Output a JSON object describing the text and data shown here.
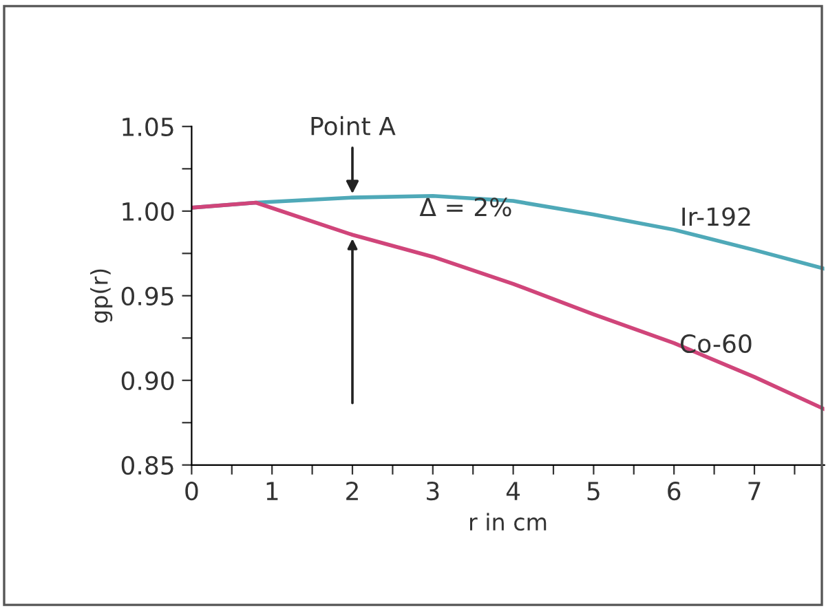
{
  "chart_data": {
    "type": "line",
    "xlabel": "r in cm",
    "ylabel": "gp(r)",
    "xlim": [
      0,
      7.87
    ],
    "ylim": [
      0.85,
      1.05
    ],
    "xticks": [
      0,
      {
        "value": 0.5,
        "label": null
      },
      1,
      {
        "value": 1.5,
        "label": null
      },
      2,
      {
        "value": 2.5,
        "label": null
      },
      3,
      {
        "value": 3.5,
        "label": null
      },
      4,
      {
        "value": 4.5,
        "label": null
      },
      5,
      {
        "value": 5.5,
        "label": null
      },
      6,
      {
        "value": 6.5,
        "label": null
      },
      7,
      {
        "value": 7.5,
        "label": null
      }
    ],
    "yticks": [
      {
        "value": 0.85,
        "label": "0.85"
      },
      {
        "value": 0.875,
        "label": null
      },
      {
        "value": 0.9,
        "label": "0.90"
      },
      {
        "value": 0.925,
        "label": null
      },
      {
        "value": 0.95,
        "label": "0.95"
      },
      {
        "value": 0.975,
        "label": null
      },
      {
        "value": 1.0,
        "label": "1.00"
      },
      {
        "value": 1.025,
        "label": null
      },
      {
        "value": 1.05,
        "label": "1.05"
      }
    ],
    "x": [
      0,
      0.8,
      2,
      3,
      4,
      5,
      6,
      7,
      7.87
    ],
    "series": [
      {
        "name": "Ir-192",
        "color": "#4fa9b8",
        "values": [
          1.002,
          1.005,
          1.008,
          1.009,
          1.006,
          0.998,
          0.989,
          0.977,
          0.966
        ]
      },
      {
        "name": "Co-60",
        "color": "#d0457a",
        "values": [
          1.002,
          1.005,
          0.986,
          0.973,
          0.957,
          0.939,
          0.922,
          0.902,
          0.883
        ]
      }
    ],
    "annotations": [
      {
        "text": "Point A",
        "x": 2,
        "y": 1.008
      },
      "Δ = 2%"
    ],
    "grid": false,
    "legend": false,
    "marker": "none",
    "line_style": "solid"
  }
}
